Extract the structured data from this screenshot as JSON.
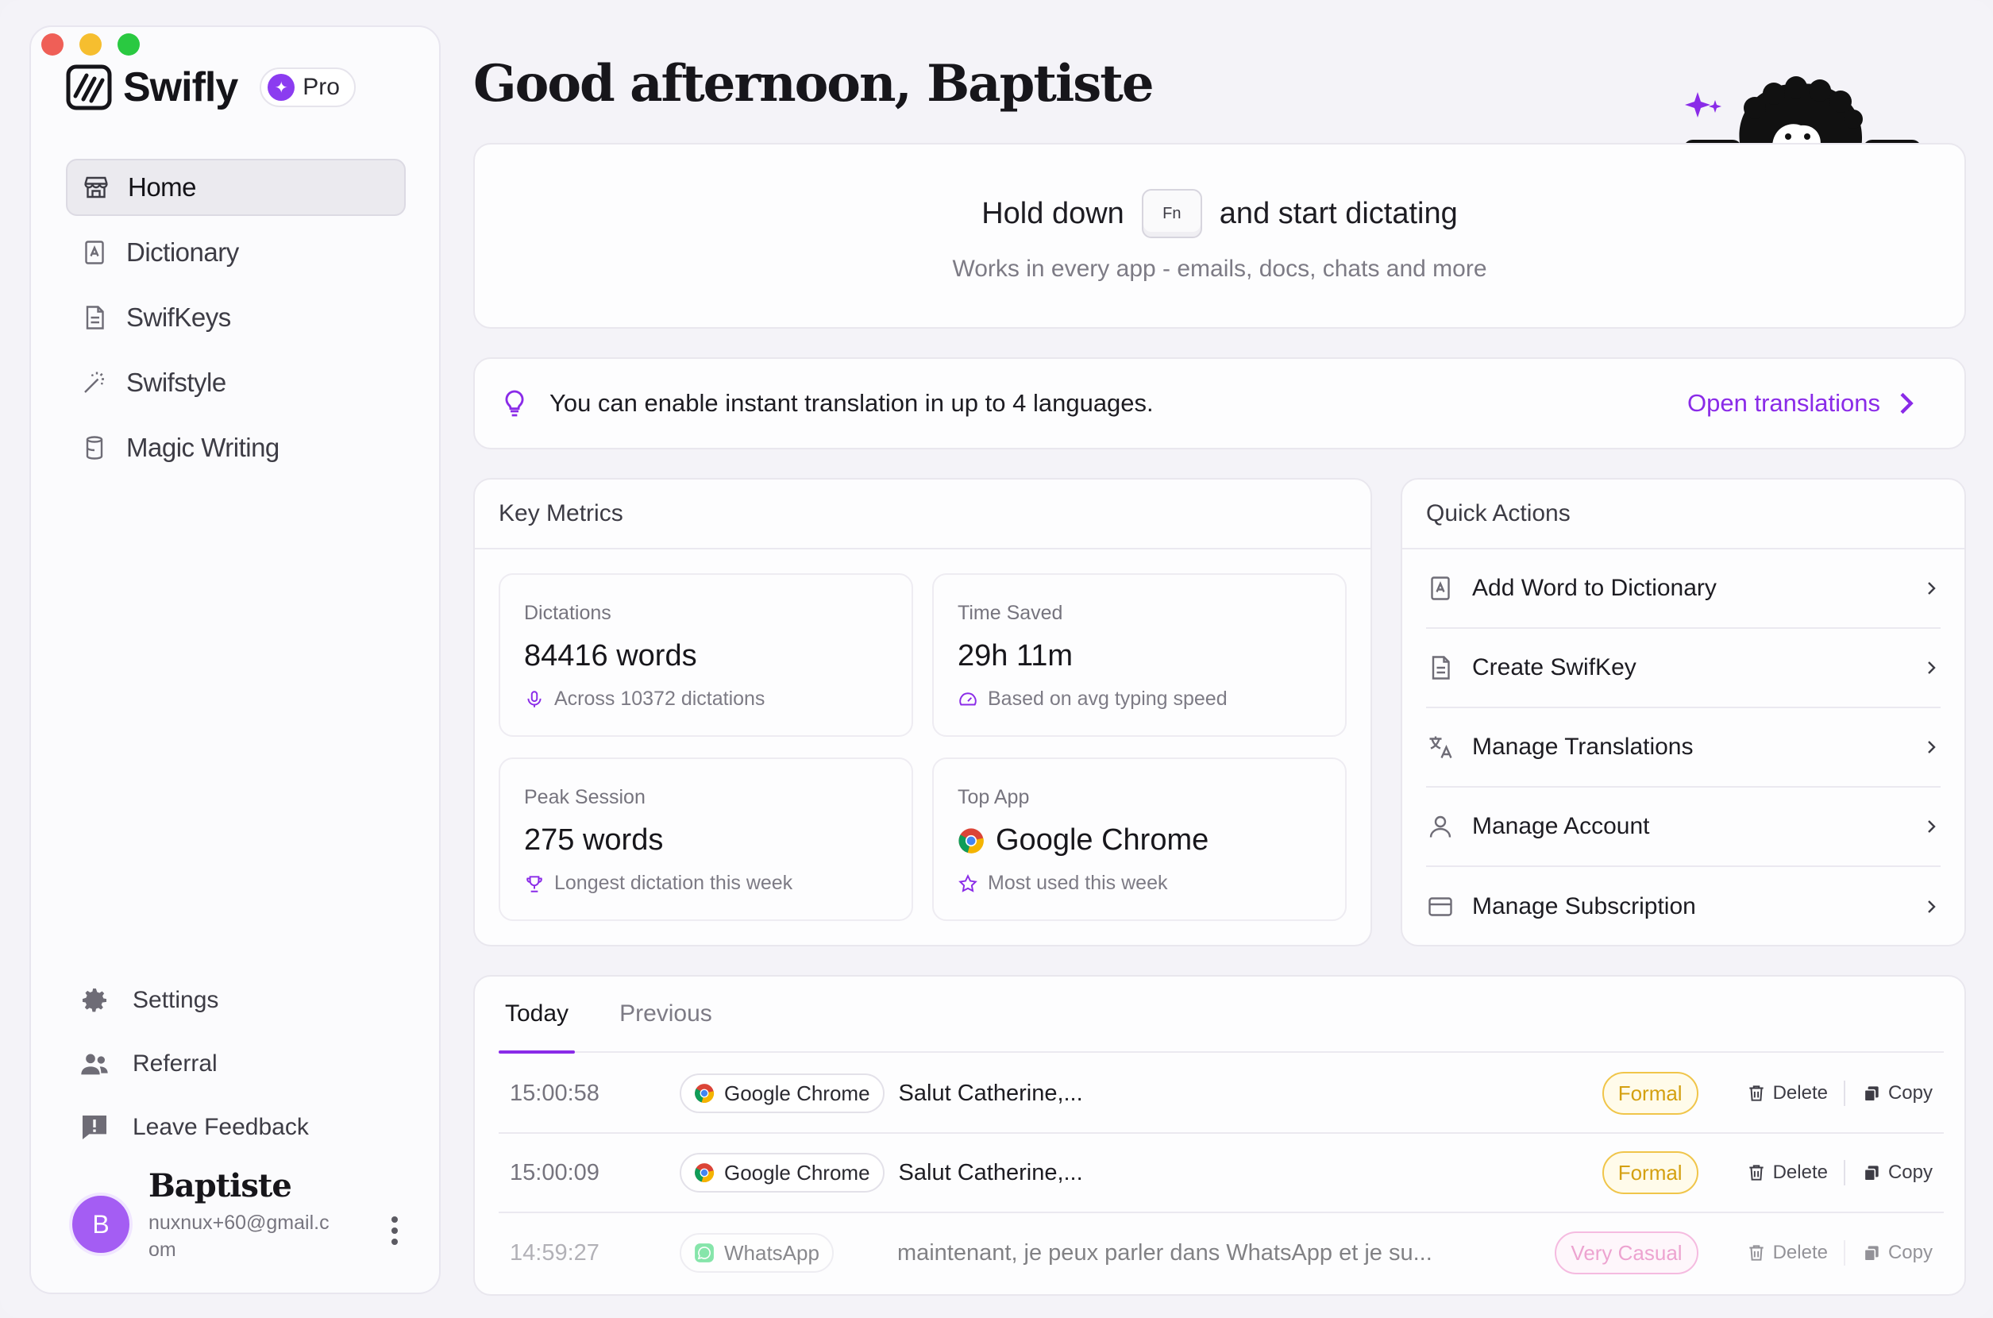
{
  "brand": {
    "name": "Swifly",
    "plan": "Pro"
  },
  "nav": {
    "items": [
      {
        "label": "Home",
        "icon": "store-icon",
        "active": true
      },
      {
        "label": "Dictionary",
        "icon": "book-a-icon",
        "active": false
      },
      {
        "label": "SwifKeys",
        "icon": "file-text-icon",
        "active": false
      },
      {
        "label": "Swifstyle",
        "icon": "magic-wand-icon",
        "active": false
      },
      {
        "label": "Magic Writing",
        "icon": "jar-icon",
        "active": false
      }
    ],
    "bottom": [
      {
        "label": "Settings",
        "icon": "gear-icon"
      },
      {
        "label": "Referral",
        "icon": "users-icon"
      },
      {
        "label": "Leave Feedback",
        "icon": "feedback-icon"
      }
    ]
  },
  "user": {
    "initial": "B",
    "name": "Baptiste",
    "email": "nuxnux+60@gmail.com"
  },
  "greeting": "Good afternoon, Baptiste",
  "hero": {
    "prefix": "Hold down",
    "key": "Fn",
    "suffix": "and start dictating",
    "subtitle": "Works in every app - emails, docs, chats and more"
  },
  "tip": {
    "text": "You can enable instant translation in up to 4 languages.",
    "link": "Open translations"
  },
  "metrics": {
    "title": "Key Metrics",
    "items": [
      {
        "label": "Dictations",
        "value": "84416 words",
        "sub": "Across 10372 dictations"
      },
      {
        "label": "Time Saved",
        "value": "29h 11m",
        "sub": "Based on avg typing speed"
      },
      {
        "label": "Peak Session",
        "value": "275 words",
        "sub": "Longest dictation this week"
      },
      {
        "label": "Top App",
        "value": "Google Chrome",
        "sub": "Most used this week"
      }
    ]
  },
  "quick_actions": {
    "title": "Quick Actions",
    "items": [
      {
        "label": "Add Word to Dictionary"
      },
      {
        "label": "Create SwifKey"
      },
      {
        "label": "Manage Translations"
      },
      {
        "label": "Manage Account"
      },
      {
        "label": "Manage Subscription"
      }
    ]
  },
  "history": {
    "tabs": [
      "Today",
      "Previous"
    ],
    "delete_label": "Delete",
    "copy_label": "Copy",
    "rows": [
      {
        "time": "15:00:58",
        "app": "Google Chrome",
        "text": "Salut Catherine,...",
        "tag": "Formal"
      },
      {
        "time": "15:00:09",
        "app": "Google Chrome",
        "text": "Salut Catherine,...",
        "tag": "Formal"
      },
      {
        "time": "14:59:27",
        "app": "WhatsApp",
        "text": "maintenant, je peux parler dans WhatsApp et je su...",
        "tag": "Very Casual"
      }
    ]
  },
  "colors": {
    "accent": "#8a2be8",
    "formal": "#f0c54a",
    "casual": "#ef86c8",
    "avatar": "#a45df3"
  }
}
